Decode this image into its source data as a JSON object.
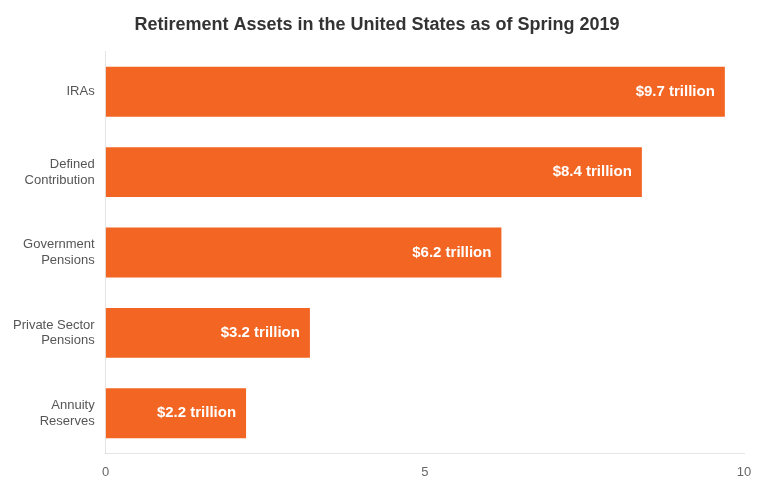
{
  "chart_data": {
    "type": "bar",
    "orientation": "horizontal",
    "title": "Retirement Assets in the United States as of Spring 2019",
    "categories": [
      "IRAs",
      "Defined\nContribution",
      "Government\nPensions",
      "Private Sector\nPensions",
      "Annuity\nReserves"
    ],
    "values": [
      9.7,
      8.4,
      6.2,
      3.2,
      2.2
    ],
    "value_labels": [
      "$9.7 trillion",
      "$8.4 trillion",
      "$6.2 trillion",
      "$3.2 trillion",
      "$2.2 trillion"
    ],
    "data_labels": true,
    "color": "#F26522",
    "xlim": [
      0,
      10
    ],
    "xticks": [
      0,
      5,
      10
    ],
    "grid": false
  }
}
